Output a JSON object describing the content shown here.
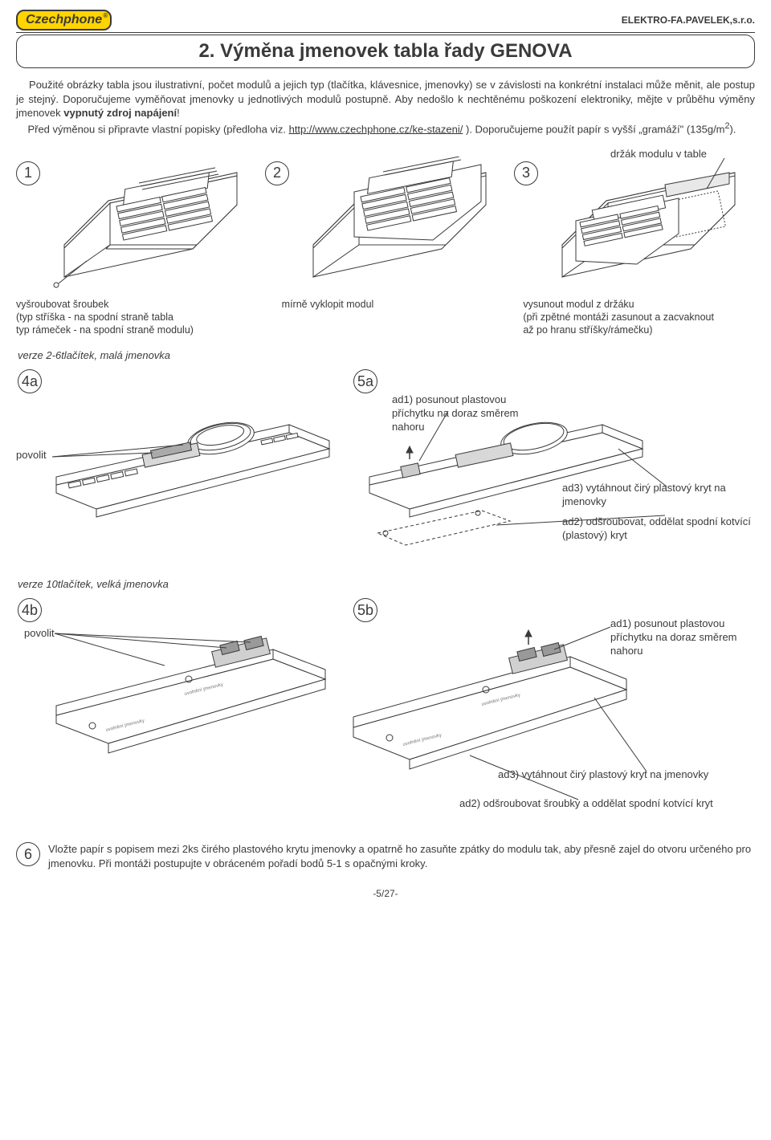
{
  "header": {
    "logo": "Czechphone",
    "company": "ELEKTRO-FA.PAVELEK,s.r.o."
  },
  "title": "2. Výměna jmenovek tabla řady GENOVA",
  "intro_html": "&nbsp;&nbsp;&nbsp;&nbsp;Použité obrázky tabla jsou ilustrativní, počet modulů a jejich typ (tlačítka, klávesnice, jmenovky) se v závislosti na konkrétní instalaci může měnit, ale postup je stejný. Doporučujeme vyměňovat jmenovky u jednotlivých modulů postupně. Aby nedošlo k nechtěnému poškození elektroniky, mějte v průběhu výměny jmenovek <b>vypnutý zdroj napájení</b>!<br>&nbsp;&nbsp;&nbsp;&nbsp;Před výměnou si připravte vlastní popisky (předloha viz. <a href='#'>http://www.czechphone.cz/ke-stazeni/</a> ). Doporučujeme použít papír s vyšší „gramáží&quot; (135g/m<sup>2</sup>).",
  "toplabel": "držák modulu v table",
  "steps_top": {
    "n1": "1",
    "n2": "2",
    "n3": "3"
  },
  "captions": {
    "c1a": "vyšroubovat šroubek",
    "c1b": "(typ stříška - na spodní straně tabla",
    "c1c": " typ rámeček - na spodní straně modulu)",
    "c2": "mírně vyklopit modul",
    "c3a": "vysunout modul z držáku",
    "c3b": "(při zpětné montáži zasunout a zacvaknout",
    "c3c": " až po hranu stříšky/rámečku)"
  },
  "ver_a": "verze 2-6tlačítek, malá jmenovka",
  "ver_b": "verze 10tlačítek, velká jmenovka",
  "steps_mid": {
    "n4a": "4a",
    "n5a": "5a",
    "n4b": "4b",
    "n5b": "5b",
    "n6": "6"
  },
  "labels": {
    "povolit": "povolit",
    "ad1": "ad1) posunout plastovou příchytku na doraz směrem nahoru",
    "ad2a": "ad2) odšroubovat, oddělat spodní kotvící (plastový) kryt",
    "ad3a": "ad3) vytáhnout čirý plastový kryt na jmenovky",
    "ad2b": "ad2) odšroubovat šroubky a oddělat spodní kotvící kryt",
    "ad3b": "ad3) vytáhnout čirý plastový kryt na jmenovky"
  },
  "final": "Vložte papír s popisem mezi 2ks čirého plastového krytu jmenovky a opatrně ho zasuňte zpátky do modulu tak, aby přesně zajel do otvoru určeného pro jmenovku. Při montáži postupujte v obráceném pořadí bodů 5-1 s opačnými kroky.",
  "pagenum": "-5/27-",
  "colors": {
    "stroke": "#3a3a3a",
    "logo_bg": "#ffd400"
  }
}
